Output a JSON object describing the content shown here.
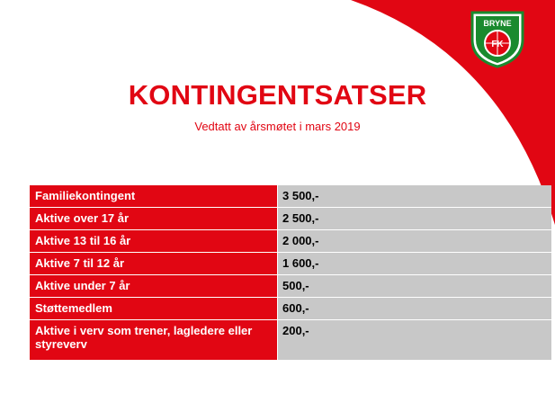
{
  "logo": {
    "name": "BRYNE",
    "initials": "FK",
    "colors": {
      "red": "#e10613",
      "green": "#1a8a2e",
      "white": "#ffffff"
    }
  },
  "title": "KONTINGENTSATSER",
  "subtitle": "Vedtatt av årsmøtet i mars 2019",
  "rates": [
    {
      "label": "Familiekontingent",
      "value": "3 500,-"
    },
    {
      "label": "Aktive over 17 år",
      "value": "2 500,-"
    },
    {
      "label": "Aktive 13 til 16 år",
      "value": "2 000,-"
    },
    {
      "label": "Aktive 7 til 12 år",
      "value": "1 600,-"
    },
    {
      "label": "Aktive under 7 år",
      "value": "500,-"
    },
    {
      "label": "Støttemedlem",
      "value": "600,-"
    },
    {
      "label": "Aktive i verv som trener, lagledere eller styreverv",
      "value": "200,-"
    }
  ],
  "colors": {
    "accent": "#e10613",
    "value_bg": "#c8c8c8"
  }
}
